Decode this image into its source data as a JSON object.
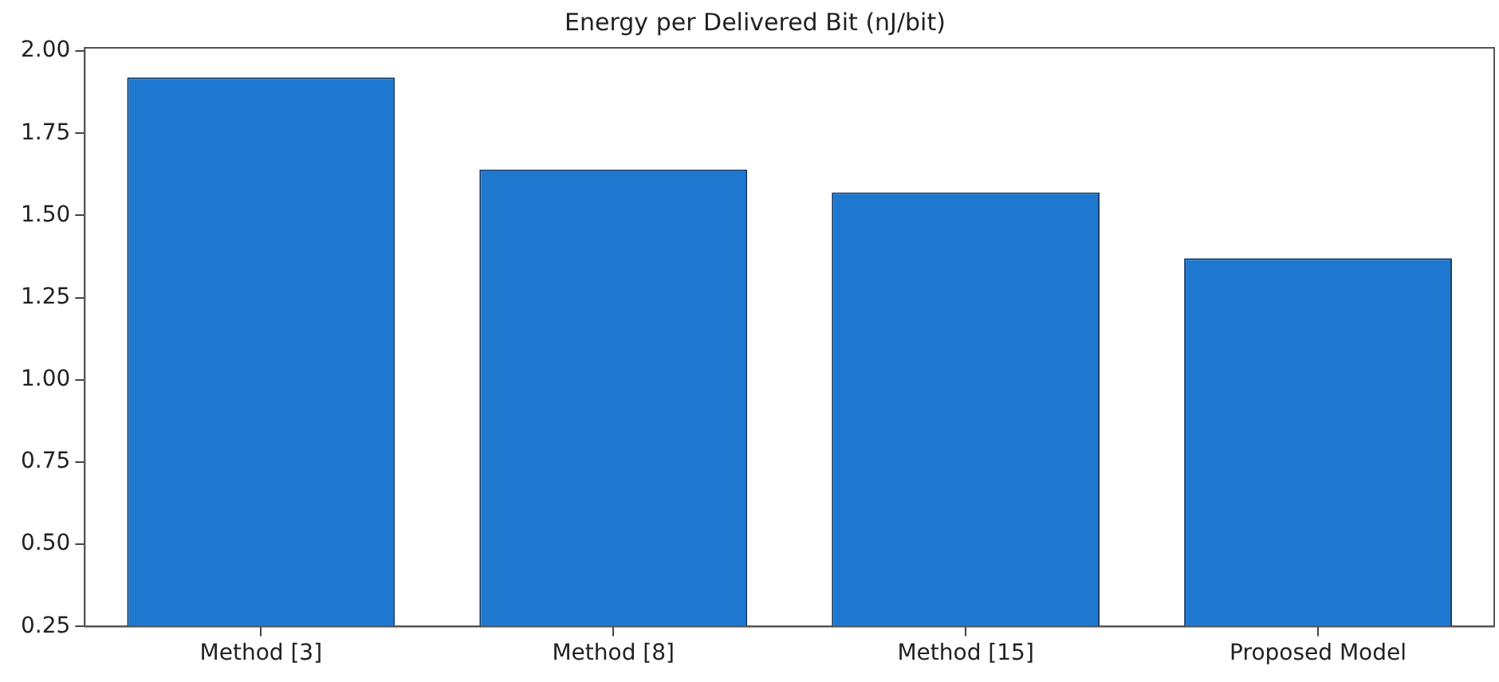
{
  "chart_data": {
    "type": "bar",
    "title": "Energy per Delivered Bit (nJ/bit)",
    "categories": [
      "Method [3]",
      "Method [8]",
      "Method [15]",
      "Proposed Model"
    ],
    "values": [
      1.92,
      1.64,
      1.57,
      1.37
    ],
    "color": "#1f78d0",
    "ylim": [
      0.25,
      2.01
    ],
    "yticks": [
      {
        "value": 0.25,
        "label": "0.25"
      },
      {
        "value": 0.5,
        "label": "0.50"
      },
      {
        "value": 0.75,
        "label": "0.75"
      },
      {
        "value": 1,
        "label": "1.00"
      },
      {
        "value": 1.25,
        "label": "1.25"
      },
      {
        "value": 1.5,
        "label": "1.50"
      },
      {
        "value": 1.75,
        "label": "1.75"
      },
      {
        "value": 2,
        "label": "2.00"
      }
    ],
    "grid": false,
    "legend": false
  }
}
